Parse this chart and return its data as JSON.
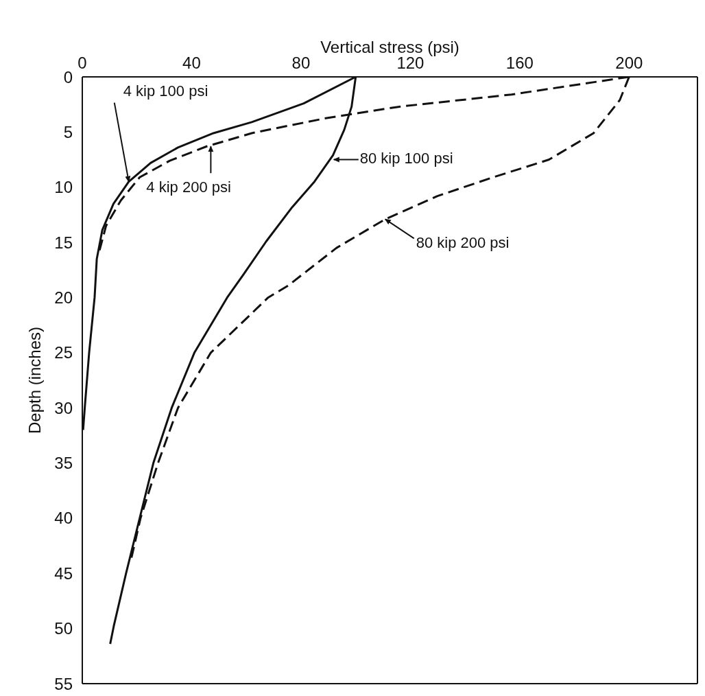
{
  "chart_data": {
    "type": "line",
    "xlabel": "Vertical stress (psi)",
    "ylabel": "Depth (inches)",
    "xlim": [
      0,
      225
    ],
    "xticks": [
      0,
      40,
      80,
      120,
      160,
      200
    ],
    "ylim": [
      55,
      0
    ],
    "yticks": [
      0,
      5,
      10,
      15,
      20,
      25,
      30,
      35,
      40,
      45,
      50,
      55
    ],
    "grid": false,
    "legend": false,
    "marker": "none",
    "series": [
      {
        "color": "#111111",
        "line_style": "solid",
        "x": [
          100,
          81,
          62,
          48,
          35,
          25,
          17,
          11.4,
          7.3,
          5.3,
          4.5,
          2.5,
          0.9,
          0.3
        ],
        "values": [
          0,
          2.4,
          4.1,
          5.1,
          6.4,
          7.8,
          9.5,
          11.5,
          13.9,
          16.5,
          20,
          25,
          30,
          32
        ]
      },
      {
        "color": "#111111",
        "line_style": "dashed",
        "x": [
          200,
          157,
          116,
          89,
          62,
          45.5,
          32,
          21,
          14.1,
          8.7,
          6
        ],
        "values": [
          0,
          1.6,
          2.7,
          3.75,
          5.1,
          6.3,
          7.6,
          9.1,
          11.2,
          13.5,
          16
        ]
      },
      {
        "color": "#111111",
        "line_style": "solid",
        "x": [
          100,
          98.5,
          95.8,
          91.7,
          84.9,
          76.8,
          67.3,
          59,
          53,
          41,
          32.7,
          26,
          21,
          16,
          11.5,
          10.2
        ],
        "values": [
          0,
          2.7,
          4.8,
          7.1,
          9.5,
          11.8,
          14.9,
          17.9,
          20,
          25,
          30,
          35,
          40,
          45,
          49.8,
          51.4
        ]
      },
      {
        "color": "#111111",
        "line_style": "dashed",
        "x": [
          200,
          196.6,
          187,
          170.7,
          150.3,
          129.9,
          110.8,
          93,
          75.4,
          68,
          47,
          35,
          27.7,
          21.3,
          17.6
        ],
        "values": [
          0,
          2.1,
          5.1,
          7.5,
          9.1,
          10.8,
          12.9,
          15.5,
          18.9,
          20,
          25,
          30,
          35,
          40,
          44
        ]
      }
    ],
    "annotations": [
      {
        "text": "4 kip 100 psi",
        "x": 17,
        "y": 9.5
      },
      {
        "text": "4 kip 200 psi",
        "x": 47,
        "y": 6.3
      },
      {
        "text": "80 kip 100 psi",
        "x": 92,
        "y": 7.5
      },
      {
        "text": "80 kip 200 psi",
        "x": 110.8,
        "y": 12.9
      }
    ]
  }
}
